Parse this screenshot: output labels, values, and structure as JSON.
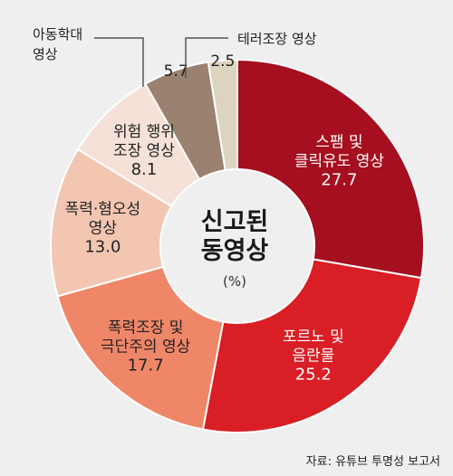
{
  "chart_data": {
    "type": "pie",
    "donut": true,
    "title": "신고된\n동영상",
    "unit_label": "(%)",
    "slices": [
      {
        "label": "스팸 및\n클릭유도 영상",
        "value": 27.7,
        "display": "27.7",
        "color": "#a50f1f",
        "text_color": "#ffffff"
      },
      {
        "label": "포르노 및\n음란물",
        "value": 25.2,
        "display": "25.2",
        "color": "#d91e26",
        "text_color": "#ffffff"
      },
      {
        "label": "폭력조장 및\n극단주의 영상",
        "value": 17.7,
        "display": "17.7",
        "color": "#ef8668",
        "text_color": "#222222"
      },
      {
        "label": "폭력·혐오성\n영상",
        "value": 13.0,
        "display": "13.0",
        "color": "#f3c6b2",
        "text_color": "#222222"
      },
      {
        "label": "위험 행위\n조장 영상",
        "value": 8.1,
        "display": "8.1",
        "color": "#f6e1d8",
        "text_color": "#222222"
      },
      {
        "label": "아동학대\n영상",
        "value": 5.7,
        "display": "5.7",
        "color": "#9a8170",
        "text_color": "#222222",
        "callout": true
      },
      {
        "label": "테러조장 영상",
        "value": 2.5,
        "display": "2.5",
        "color": "#ddd4c0",
        "text_color": "#222222",
        "callout": true
      }
    ]
  },
  "source": "자료: 유튜브 투명성 보고서"
}
